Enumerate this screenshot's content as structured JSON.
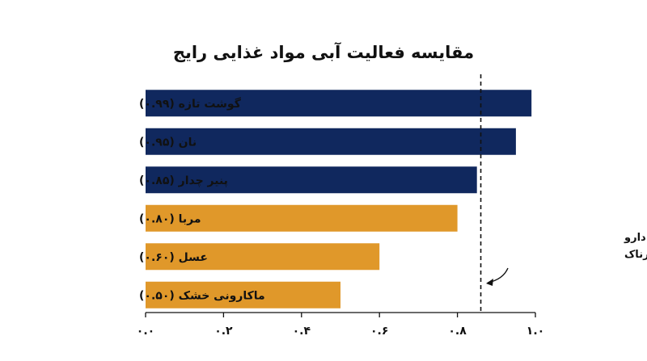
{
  "chart_data": {
    "type": "bar",
    "orientation": "horizontal",
    "title": "مقایسه فعالیت آبی مواد غذایی رایج",
    "categories": [
      "گوشت تازه (۰.۹۹)",
      "نان (۰.۹۵)",
      "پنیر چدار (۰.۸۵)",
      "مربا (۰.۸۰)",
      "عسل (۰.۶۰)",
      "ماکارونی خشک (۰.۵۰)"
    ],
    "values": [
      0.99,
      0.95,
      0.85,
      0.8,
      0.6,
      0.5
    ],
    "bar_colors": [
      "#10285e",
      "#10285e",
      "#10285e",
      "#e0982a",
      "#e0982a",
      "#e0982a"
    ],
    "xlim": [
      0,
      1.0
    ],
    "xticks": [
      0.0,
      0.2,
      0.4,
      0.6,
      0.8,
      1.0
    ],
    "xtick_labels": [
      "۰.۰",
      "۰.۲",
      "۰.۴",
      "۰.۶",
      "۰.۸",
      "۱.۰"
    ],
    "grid": false,
    "threshold": {
      "value": 0.86,
      "style": "dashed",
      "label_lines": [
        "آستانه سازمان غذا و دارو",
        "برای غذاهای بالقوه خطرناک"
      ]
    }
  }
}
